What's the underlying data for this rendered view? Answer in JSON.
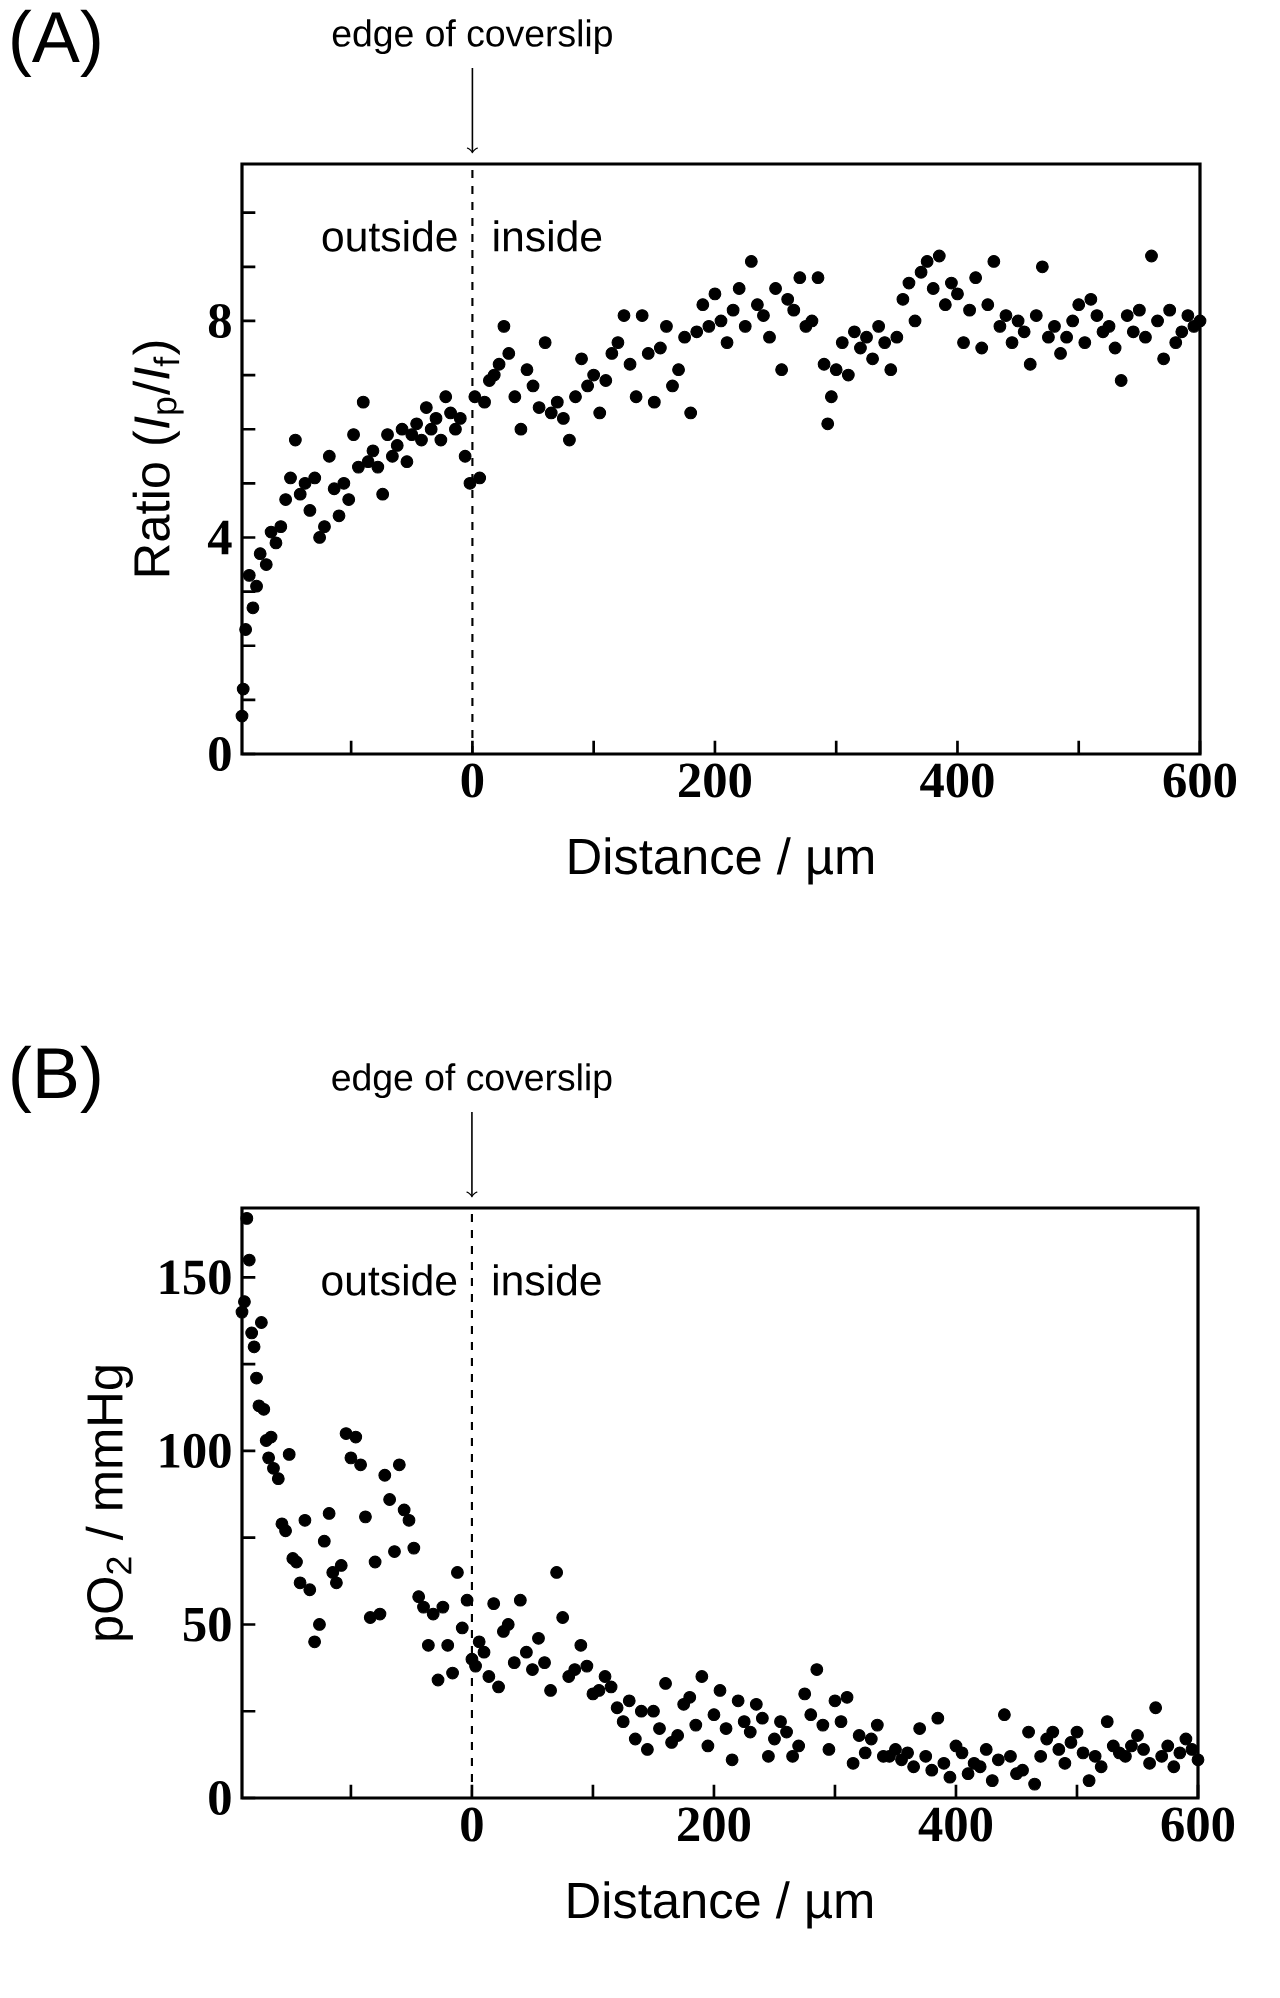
{
  "chart_data": [
    {
      "type": "scatter",
      "title": "(A)",
      "xlabel": "Distance / µm",
      "ylabel": "Ratio (*I*$_{p}$/*I*$_{f}$)",
      "marker": "circle",
      "annotations": [
        "edge of coverslip",
        "outside",
        "inside"
      ],
      "ref_lines": [
        {
          "axis": "x",
          "value": 0,
          "line_style": "dashed",
          "color": "#000000"
        }
      ],
      "xlim": [
        -190,
        600
      ],
      "xticks": [
        {
          "value": -100,
          "label": null
        },
        0,
        {
          "value": 100,
          "label": null
        },
        200,
        {
          "value": 300,
          "label": null
        },
        400,
        {
          "value": 500,
          "label": null
        },
        600
      ],
      "ylim": [
        0,
        10.9
      ],
      "yticks": [
        0,
        {
          "value": 1,
          "label": null
        },
        {
          "value": 2,
          "label": null
        },
        {
          "value": 3,
          "label": null
        },
        4,
        {
          "value": 5,
          "label": null
        },
        {
          "value": 6,
          "label": null
        },
        {
          "value": 7,
          "label": null
        },
        8,
        {
          "value": 9,
          "label": null
        },
        {
          "value": 10,
          "label": null
        }
      ],
      "series": [
        {
          "color": "#000000",
          "x": [
            -190,
            -189,
            -187,
            -184,
            -181,
            -178,
            -175,
            -170,
            -166,
            -162,
            -158,
            -154,
            -150,
            -146,
            -142,
            -138,
            -134,
            -130,
            -126,
            -122,
            -118,
            -114,
            -110,
            -106,
            -102,
            -98,
            -94,
            -90,
            -86,
            -82,
            -78,
            -74,
            -70,
            -66,
            -62,
            -58,
            -54,
            -50,
            -46,
            -42,
            -38,
            -34,
            -30,
            -26,
            -22,
            -18,
            -14,
            -10,
            -6,
            -2,
            2,
            6,
            10,
            14,
            18,
            22,
            26,
            30,
            35,
            40,
            45,
            50,
            55,
            60,
            65,
            70,
            75,
            80,
            85,
            90,
            95,
            100,
            105,
            110,
            115,
            120,
            125,
            130,
            135,
            140,
            145,
            150,
            155,
            160,
            165,
            170,
            175,
            180,
            185,
            190,
            195,
            200,
            205,
            210,
            215,
            220,
            225,
            230,
            235,
            240,
            245,
            250,
            255,
            260,
            265,
            270,
            275,
            280,
            285,
            290,
            293,
            296,
            300,
            305,
            310,
            315,
            320,
            325,
            330,
            335,
            340,
            345,
            350,
            355,
            360,
            365,
            370,
            375,
            380,
            385,
            390,
            395,
            400,
            405,
            410,
            415,
            420,
            425,
            430,
            435,
            440,
            445,
            450,
            455,
            460,
            465,
            470,
            475,
            480,
            485,
            490,
            495,
            500,
            505,
            510,
            515,
            520,
            525,
            530,
            535,
            540,
            545,
            550,
            555,
            560,
            565,
            570,
            575,
            580,
            585,
            590,
            595,
            600
          ],
          "values": [
            0.7,
            1.2,
            2.3,
            3.3,
            2.7,
            3.1,
            3.7,
            3.5,
            4.1,
            3.9,
            4.2,
            4.7,
            5.1,
            5.8,
            4.8,
            5.0,
            4.5,
            5.1,
            4.0,
            4.2,
            5.5,
            4.9,
            4.4,
            5.0,
            4.7,
            5.9,
            5.3,
            6.5,
            5.4,
            5.6,
            5.3,
            4.8,
            5.9,
            5.5,
            5.7,
            6.0,
            5.4,
            5.9,
            6.1,
            5.8,
            6.4,
            6.0,
            6.2,
            5.8,
            6.6,
            6.3,
            6.0,
            6.2,
            5.5,
            5.0,
            6.6,
            5.1,
            6.5,
            6.9,
            7.0,
            7.2,
            7.9,
            7.4,
            6.6,
            6.0,
            7.1,
            6.8,
            6.4,
            7.6,
            6.3,
            6.5,
            6.2,
            5.8,
            6.6,
            7.3,
            6.8,
            7.0,
            6.3,
            6.9,
            7.4,
            7.6,
            8.1,
            7.2,
            6.6,
            8.1,
            7.4,
            6.5,
            7.5,
            7.9,
            6.8,
            7.1,
            7.7,
            6.3,
            7.8,
            8.3,
            7.9,
            8.5,
            8.0,
            7.6,
            8.2,
            8.6,
            7.9,
            9.1,
            8.3,
            8.1,
            7.7,
            8.6,
            7.1,
            8.4,
            8.2,
            8.8,
            7.9,
            8.0,
            8.8,
            7.2,
            6.1,
            6.6,
            7.1,
            7.6,
            7.0,
            7.8,
            7.5,
            7.7,
            7.3,
            7.9,
            7.6,
            7.1,
            7.7,
            8.4,
            8.7,
            8.0,
            8.9,
            9.1,
            8.6,
            9.2,
            8.3,
            8.7,
            8.5,
            7.6,
            8.2,
            8.8,
            7.5,
            8.3,
            9.1,
            7.9,
            8.1,
            7.6,
            8.0,
            7.8,
            7.2,
            8.1,
            9.0,
            7.7,
            7.9,
            7.4,
            7.7,
            8.0,
            8.3,
            7.6,
            8.4,
            8.1,
            7.8,
            7.9,
            7.5,
            6.9,
            8.1,
            7.8,
            8.2,
            7.7,
            9.2,
            8.0,
            7.3,
            8.2,
            7.6,
            7.8,
            8.1,
            7.9,
            8.0
          ]
        }
      ]
    },
    {
      "type": "scatter",
      "title": "(B)",
      "xlabel": "Distance / µm",
      "ylabel": "pO$_{2}$ / mmHg",
      "marker": "circle",
      "annotations": [
        "edge of coverslip",
        "outside",
        "inside"
      ],
      "ref_lines": [
        {
          "axis": "x",
          "value": 0,
          "line_style": "dashed",
          "color": "#000000"
        }
      ],
      "xlim": [
        -190,
        600
      ],
      "xticks": [
        {
          "value": -100,
          "label": null
        },
        0,
        {
          "value": 100,
          "label": null
        },
        200,
        {
          "value": 300,
          "label": null
        },
        400,
        {
          "value": 500,
          "label": null
        },
        600
      ],
      "ylim": [
        0,
        170
      ],
      "yticks": [
        0,
        {
          "value": 25,
          "label": null
        },
        50,
        {
          "value": 75,
          "label": null
        },
        100,
        {
          "value": 125,
          "label": null
        },
        150
      ],
      "series": [
        {
          "color": "#000000",
          "x": [
            -190,
            -188,
            -186,
            -184,
            -182,
            -180,
            -178,
            -176,
            -174,
            -172,
            -170,
            -168,
            -166,
            -164,
            -160,
            -157,
            -154,
            -151,
            -148,
            -145,
            -142,
            -138,
            -134,
            -130,
            -126,
            -122,
            -118,
            -115,
            -112,
            -108,
            -104,
            -100,
            -96,
            -92,
            -88,
            -84,
            -80,
            -76,
            -72,
            -68,
            -64,
            -60,
            -56,
            -52,
            -48,
            -44,
            -40,
            -36,
            -32,
            -28,
            -24,
            -20,
            -16,
            -12,
            -8,
            -4,
            0,
            3,
            6,
            10,
            14,
            18,
            22,
            26,
            30,
            35,
            40,
            45,
            50,
            55,
            60,
            65,
            70,
            75,
            80,
            85,
            90,
            95,
            100,
            105,
            110,
            115,
            120,
            125,
            130,
            135,
            140,
            145,
            150,
            155,
            160,
            165,
            170,
            175,
            180,
            185,
            190,
            195,
            200,
            205,
            210,
            215,
            220,
            225,
            230,
            235,
            240,
            245,
            250,
            255,
            260,
            265,
            270,
            275,
            280,
            285,
            290,
            295,
            300,
            305,
            310,
            315,
            320,
            325,
            330,
            335,
            340,
            345,
            350,
            355,
            360,
            365,
            370,
            375,
            380,
            385,
            390,
            395,
            400,
            405,
            410,
            415,
            420,
            425,
            430,
            435,
            440,
            445,
            450,
            455,
            460,
            465,
            470,
            475,
            480,
            485,
            490,
            495,
            500,
            505,
            510,
            515,
            520,
            525,
            530,
            535,
            540,
            545,
            550,
            555,
            560,
            565,
            570,
            575,
            580,
            585,
            590,
            595,
            600
          ],
          "values": [
            140,
            143,
            167,
            155,
            134,
            130,
            121,
            113,
            137,
            112,
            103,
            98,
            104,
            95,
            92,
            79,
            77,
            99,
            69,
            68,
            62,
            80,
            60,
            45,
            50,
            74,
            82,
            65,
            62,
            67,
            105,
            98,
            104,
            96,
            81,
            52,
            68,
            53,
            93,
            86,
            71,
            96,
            83,
            80,
            72,
            58,
            55,
            44,
            53,
            34,
            55,
            44,
            36,
            65,
            49,
            57,
            40,
            38,
            45,
            42,
            35,
            56,
            32,
            48,
            50,
            39,
            57,
            42,
            37,
            46,
            39,
            31,
            65,
            52,
            35,
            37,
            44,
            38,
            30,
            31,
            35,
            32,
            26,
            22,
            28,
            17,
            25,
            14,
            25,
            20,
            33,
            16,
            18,
            27,
            29,
            21,
            35,
            15,
            24,
            31,
            20,
            11,
            28,
            22,
            19,
            27,
            23,
            12,
            17,
            22,
            19,
            12,
            15,
            30,
            24,
            37,
            21,
            14,
            28,
            22,
            29,
            10,
            18,
            13,
            17,
            21,
            12,
            12,
            14,
            11,
            13,
            9,
            20,
            12,
            8,
            23,
            10,
            6,
            15,
            13,
            7,
            10,
            9,
            14,
            5,
            11,
            24,
            12,
            7,
            8,
            19,
            4,
            12,
            17,
            19,
            14,
            10,
            16,
            19,
            13,
            5,
            12,
            9,
            22,
            15,
            13,
            12,
            15,
            18,
            14,
            10,
            26,
            12,
            15,
            9,
            13,
            17,
            14,
            11
          ]
        }
      ]
    }
  ]
}
